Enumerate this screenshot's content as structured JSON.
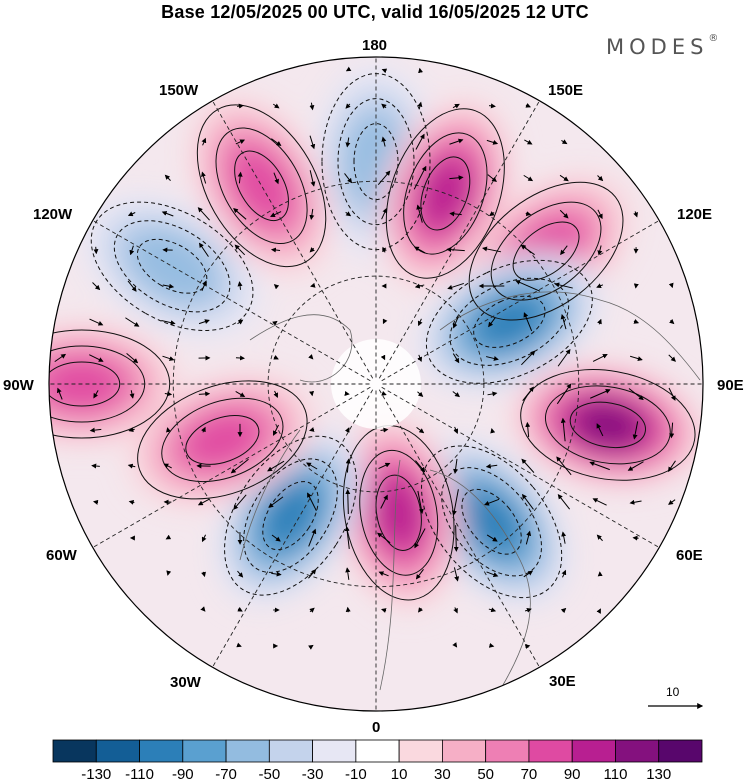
{
  "title": "Base 12/05/2025 00 UTC, valid 16/05/2025 12 UTC",
  "brand": "MODES",
  "brand_mark": "®",
  "longitude_labels": {
    "lon_180": "180",
    "lon_150e": "150E",
    "lon_120e": "120E",
    "lon_90e": "90E",
    "lon_60e": "60E",
    "lon_30e": "30E",
    "lon_0": "0",
    "lon_30w": "30W",
    "lon_60w": "60W",
    "lon_90w": "90W",
    "lon_120w": "120W",
    "lon_150w": "150W"
  },
  "reference_vector": {
    "label": "10"
  },
  "colorbar": {
    "tick_labels": [
      "-130",
      "-110",
      "-90",
      "-70",
      "-50",
      "-30",
      "-10",
      "10",
      "30",
      "50",
      "70",
      "90",
      "110",
      "130"
    ],
    "colors": [
      "#08365e",
      "#135e96",
      "#2c7fb8",
      "#5aa0d0",
      "#93bce0",
      "#c4d3ec",
      "#e7e7f4",
      "#ffffff",
      "#fad9df",
      "#f6afc6",
      "#ee7fb4",
      "#df4aa2",
      "#b81f91",
      "#84117e",
      "#58066c"
    ]
  },
  "field_anomalies": [
    {
      "lon": 180,
      "dist": 0.68,
      "value": -75
    },
    {
      "lon": 160,
      "dist": 0.62,
      "value": 105
    },
    {
      "lon": 128,
      "dist": 0.66,
      "value": 92
    },
    {
      "lon": 115,
      "dist": 0.45,
      "value": -112
    },
    {
      "lon": 80,
      "dist": 0.72,
      "value": 132
    },
    {
      "lon": 40,
      "dist": 0.55,
      "value": -108
    },
    {
      "lon": 10,
      "dist": 0.4,
      "value": 118
    },
    {
      "lon": -33,
      "dist": 0.48,
      "value": -102
    },
    {
      "lon": -70,
      "dist": 0.5,
      "value": 80
    },
    {
      "lon": -90,
      "dist": 0.9,
      "value": 85
    },
    {
      "lon": -120,
      "dist": 0.72,
      "value": -72
    },
    {
      "lon": -150,
      "dist": 0.7,
      "value": 80
    }
  ]
}
